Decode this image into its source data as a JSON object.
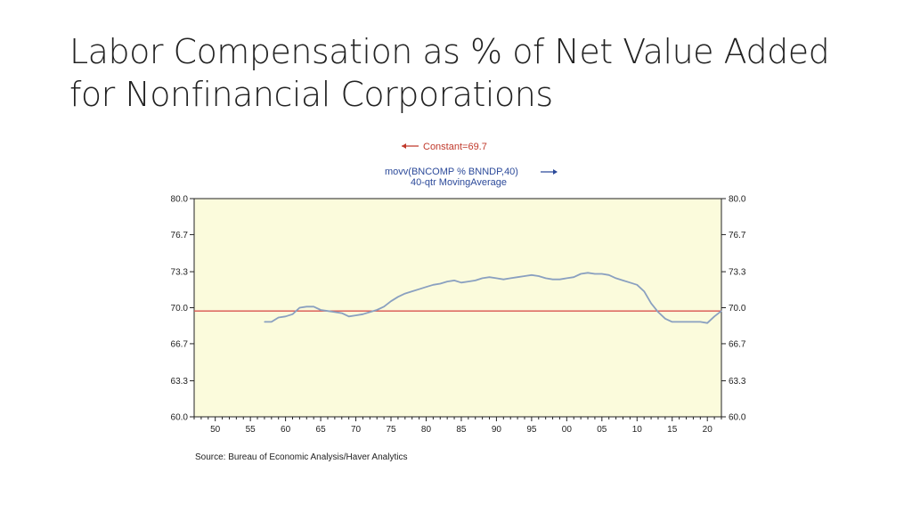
{
  "slide": {
    "title_line1": "Labor Compensation as % of Net Value Added",
    "title_line2": "for Nonfinancial Corporations"
  },
  "chart_data": {
    "type": "line",
    "legend": {
      "constant_label": "Constant=69.7",
      "series_label": "movv(BNCOMP % BNNDP,40)",
      "series_sublabel": "40-qtr MovingAverage"
    },
    "source": "Source:  Bureau of Economic Analysis/Haver Analytics",
    "xlim": [
      1947,
      2022
    ],
    "ylim": [
      60.0,
      80.0
    ],
    "y_ticks": [
      "80.0",
      "76.7",
      "73.3",
      "70.0",
      "66.7",
      "63.3",
      "60.0"
    ],
    "y_tick_values": [
      80.0,
      76.7,
      73.3,
      70.0,
      66.7,
      63.3,
      60.0
    ],
    "x_tick_labels": [
      "50",
      "55",
      "60",
      "65",
      "70",
      "75",
      "80",
      "85",
      "90",
      "95",
      "00",
      "05",
      "10",
      "15",
      "20"
    ],
    "x_tick_values": [
      1950,
      1955,
      1960,
      1965,
      1970,
      1975,
      1980,
      1985,
      1990,
      1995,
      2000,
      2005,
      2010,
      2015,
      2020
    ],
    "constant_value": 69.7,
    "series": [
      {
        "x": [
          1957,
          1958,
          1959,
          1960,
          1961,
          1962,
          1963,
          1964,
          1965,
          1966,
          1967,
          1968,
          1969,
          1970,
          1971,
          1972,
          1973,
          1974,
          1975,
          1976,
          1977,
          1978,
          1979,
          1980,
          1981,
          1982,
          1983,
          1984,
          1985,
          1986,
          1987,
          1988,
          1989,
          1990,
          1991,
          1992,
          1993,
          1994,
          1995,
          1996,
          1997,
          1998,
          1999,
          2000,
          2001,
          2002,
          2003,
          2004,
          2005,
          2006,
          2007,
          2008,
          2009,
          2010,
          2011,
          2012,
          2013,
          2014,
          2015,
          2016,
          2017,
          2018,
          2019,
          2020,
          2021,
          2022
        ],
        "values": [
          68.7,
          68.7,
          69.1,
          69.2,
          69.4,
          70.0,
          70.1,
          70.1,
          69.8,
          69.7,
          69.6,
          69.5,
          69.2,
          69.3,
          69.4,
          69.6,
          69.8,
          70.1,
          70.6,
          71.0,
          71.3,
          71.5,
          71.7,
          71.9,
          72.1,
          72.2,
          72.4,
          72.5,
          72.3,
          72.4,
          72.5,
          72.7,
          72.8,
          72.7,
          72.6,
          72.7,
          72.8,
          72.9,
          73.0,
          72.9,
          72.7,
          72.6,
          72.6,
          72.7,
          72.8,
          73.1,
          73.2,
          73.1,
          73.1,
          73.0,
          72.7,
          72.5,
          72.3,
          72.1,
          71.5,
          70.4,
          69.6,
          69.0,
          68.7,
          68.7,
          68.7,
          68.7,
          68.7,
          68.6,
          69.2,
          69.7
        ]
      }
    ],
    "colors": {
      "plot_background": "#fbfbdc",
      "series_line": "#8aa0c0",
      "constant_line": "#d9534f",
      "legend_red": "#c0392b",
      "legend_blue": "#2c4a9a"
    },
    "grid": false
  }
}
